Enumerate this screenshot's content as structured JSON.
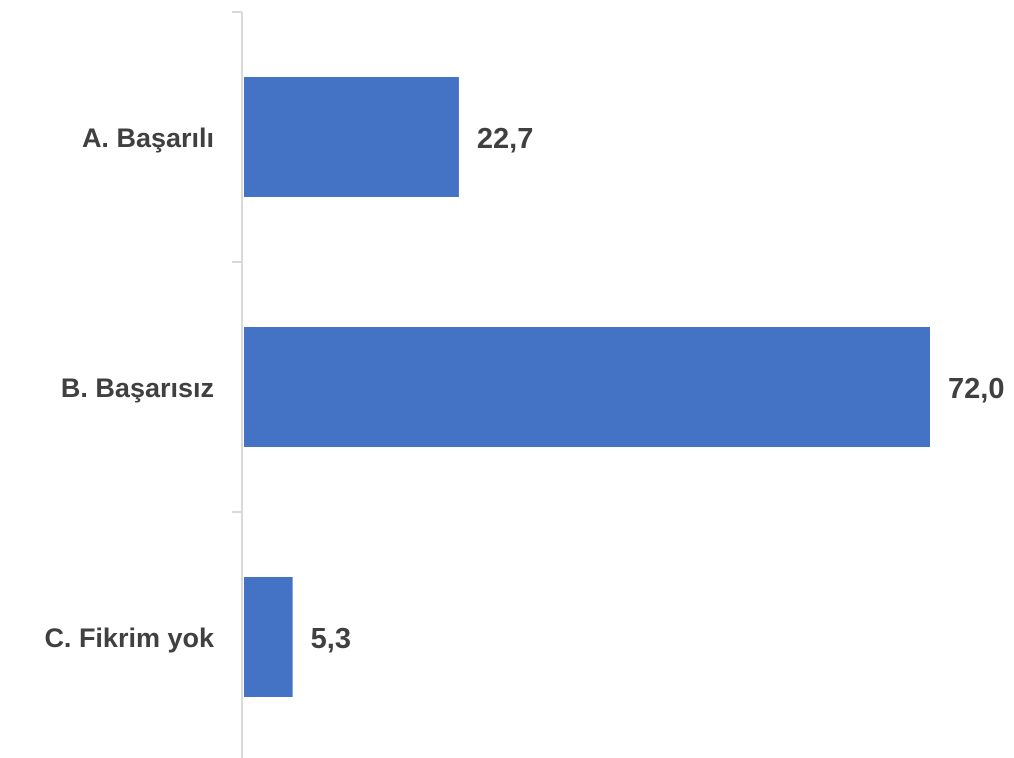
{
  "chart_data": {
    "type": "bar",
    "orientation": "horizontal",
    "categories": [
      "A. Başarılı",
      "B. Başarısız",
      "C. Fikrim yok"
    ],
    "values": [
      22.7,
      72.0,
      5.3
    ],
    "value_labels": [
      "22,7",
      "72,0",
      "5,3"
    ],
    "title": "",
    "xlabel": "",
    "ylabel": "",
    "xlim": [
      0,
      72.0
    ],
    "grid": false,
    "legend": "none",
    "colors": {
      "bar": "#4472c4",
      "text": "#404040",
      "axis": "#d9d9d9"
    }
  }
}
